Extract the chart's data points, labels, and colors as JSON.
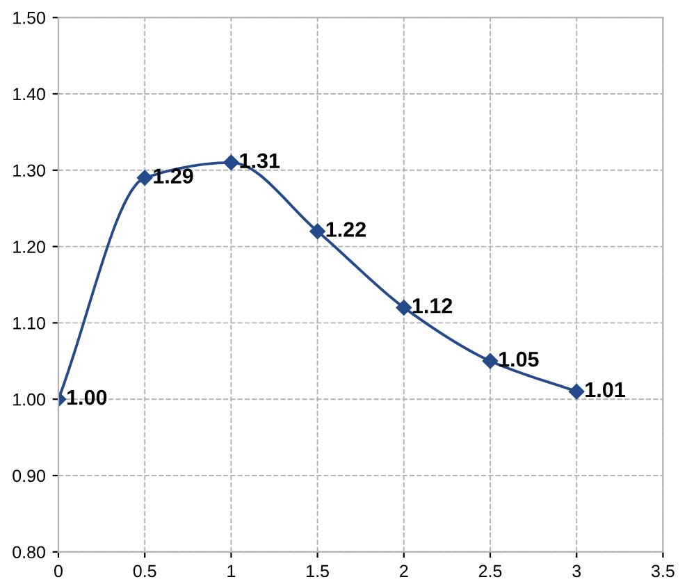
{
  "chart_data": {
    "type": "line",
    "x": [
      0,
      0.5,
      1,
      1.5,
      2,
      2.5,
      3
    ],
    "series": [
      {
        "color": "#254a8c",
        "values": [
          1.0,
          1.29,
          1.31,
          1.22,
          1.12,
          1.05,
          1.01
        ],
        "value_labels": [
          "1.00",
          "1.29",
          "1.31",
          "1.22",
          "1.12",
          "1.05",
          "1.01"
        ]
      }
    ],
    "xlim": [
      0,
      3.5
    ],
    "xticks": [
      0,
      0.5,
      1,
      1.5,
      2,
      2.5,
      3,
      3.5
    ],
    "ylim": [
      0.8,
      1.5
    ],
    "yticks": [
      {
        "value": 0.8,
        "label": "0.80"
      },
      {
        "value": 0.9,
        "label": "0.90"
      },
      {
        "value": 1.0,
        "label": "1.00"
      },
      {
        "value": 1.1,
        "label": "1.10"
      },
      {
        "value": 1.2,
        "label": "1.20"
      },
      {
        "value": 1.3,
        "label": "1.30"
      },
      {
        "value": 1.4,
        "label": "1.40"
      },
      {
        "value": 1.5,
        "label": "1.50"
      }
    ],
    "grid": true,
    "marker": "diamond",
    "line_style": "solid"
  }
}
